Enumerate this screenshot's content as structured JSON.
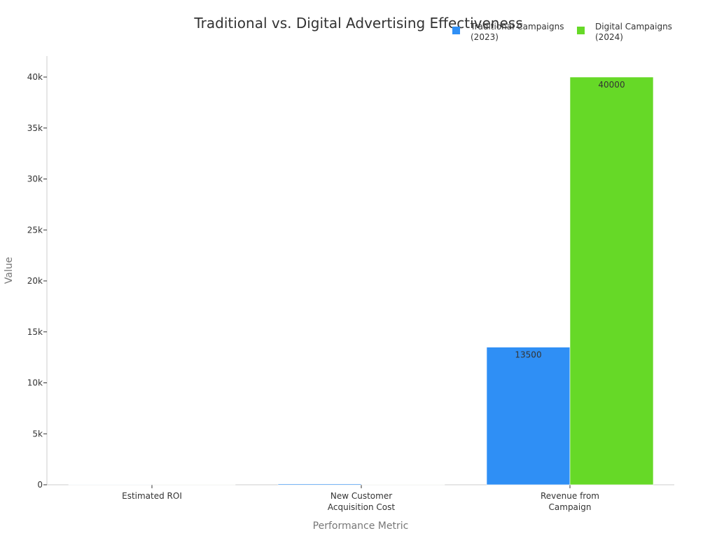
{
  "chart_data": {
    "type": "bar",
    "title": "Traditional vs. Digital Advertising Effectiveness",
    "xlabel": "Performance Metric",
    "ylabel": "Value",
    "categories": [
      [
        "Estimated ROI"
      ],
      [
        "New Customer",
        "Acquisition Cost"
      ],
      [
        "Revenue from",
        "Campaign"
      ]
    ],
    "ylim": [
      0,
      42000
    ],
    "yticks": [
      0,
      5000,
      10000,
      15000,
      20000,
      25000,
      30000,
      35000,
      40000
    ],
    "ytick_labels": [
      "0",
      "5k",
      "10k",
      "15k",
      "20k",
      "25k",
      "30k",
      "35k",
      "40k"
    ],
    "grid": false,
    "legend_position": "top-right",
    "series": [
      {
        "name": [
          "Traditional Campaigns",
          "(2023)"
        ],
        "color": "#2f8ff5",
        "values": [
          2.5,
          85,
          13500
        ],
        "labels": [
          "",
          "",
          "13500"
        ]
      },
      {
        "name": [
          "Digital Campaigns",
          "(2024)"
        ],
        "color": "#66d927",
        "values": [
          5,
          25,
          40000
        ],
        "labels": [
          "",
          "",
          "40000"
        ]
      }
    ]
  }
}
